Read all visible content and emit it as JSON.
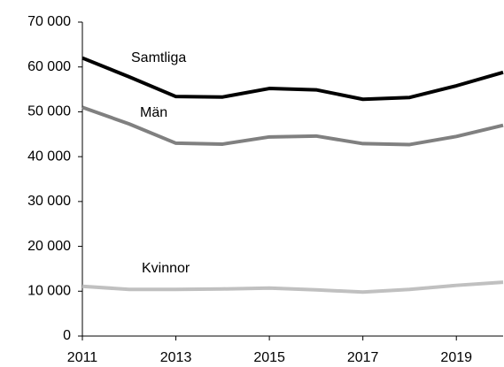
{
  "chart_data": {
    "type": "line",
    "x": [
      2011,
      2012,
      2013,
      2014,
      2015,
      2016,
      2017,
      2018,
      2019,
      2020
    ],
    "series": [
      {
        "name": "Samtliga",
        "color": "#000000",
        "values": [
          62000,
          57800,
          53400,
          53300,
          55200,
          54900,
          52800,
          53200,
          55800,
          58800
        ]
      },
      {
        "name": "Män",
        "color": "#808080",
        "values": [
          51000,
          47300,
          43000,
          42800,
          44400,
          44600,
          42900,
          42700,
          44500,
          47000
        ]
      },
      {
        "name": "Kvinnor",
        "color": "#c0c0c0",
        "values": [
          11100,
          10400,
          10400,
          10500,
          10700,
          10300,
          9800,
          10400,
          11300,
          12000
        ]
      }
    ],
    "xlim": [
      2011,
      2020
    ],
    "xticks": [
      2011,
      2013,
      2015,
      2017,
      2019
    ],
    "ylim": [
      0,
      70000
    ],
    "yticks": [
      0,
      {
        "value": 10000,
        "label": "10 000"
      },
      {
        "value": 20000,
        "label": "20 000"
      },
      {
        "value": 30000,
        "label": "30 000"
      },
      {
        "value": 40000,
        "label": "40 000"
      },
      {
        "value": 50000,
        "label": "50 000"
      },
      {
        "value": 60000,
        "label": "60 000"
      },
      {
        "value": 70000,
        "label": "70 000"
      }
    ],
    "grid": false
  }
}
